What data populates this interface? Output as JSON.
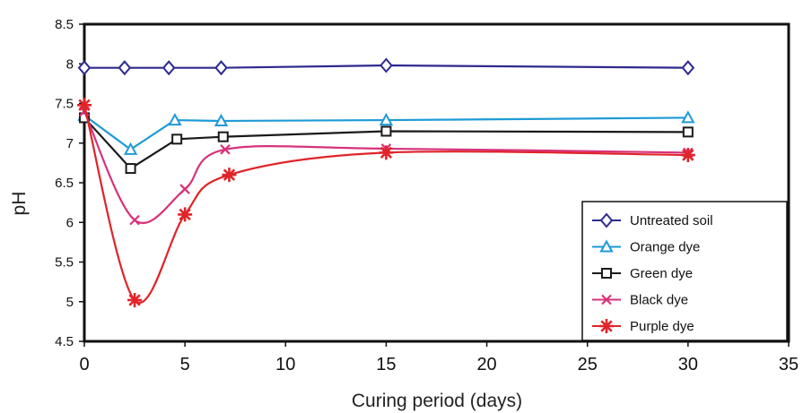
{
  "chart_data": {
    "type": "line",
    "xlabel": "Curing period (days)",
    "ylabel": "pH",
    "xlim": [
      0,
      35
    ],
    "ylim": [
      4.5,
      8.5
    ],
    "xticks": [
      "0",
      "5",
      "10",
      "15",
      "20",
      "25",
      "30",
      "35"
    ],
    "yticks": [
      "4.5",
      "5",
      "5.5",
      "6",
      "6.5",
      "7",
      "7.5",
      "8",
      "8.5"
    ],
    "grid": false,
    "legend_position": "bottom-right",
    "series": [
      {
        "name": "Untreated soil",
        "color": "#2e2a8f",
        "marker": "diamond",
        "smooth": false,
        "x": [
          0,
          2,
          4.2,
          6.8,
          15,
          30
        ],
        "y": [
          7.95,
          7.95,
          7.95,
          7.95,
          7.98,
          7.95
        ]
      },
      {
        "name": "Orange dye",
        "color": "#1e9ad6",
        "marker": "triangle",
        "smooth": false,
        "x": [
          0,
          2.3,
          4.5,
          6.8,
          15,
          30
        ],
        "y": [
          7.35,
          6.92,
          7.29,
          7.28,
          7.29,
          7.32
        ]
      },
      {
        "name": "Green dye",
        "color": "#1a1a1a",
        "marker": "square",
        "smooth": false,
        "x": [
          0,
          2.3,
          4.6,
          6.9,
          15,
          30
        ],
        "y": [
          7.32,
          6.68,
          7.05,
          7.08,
          7.15,
          7.14
        ]
      },
      {
        "name": "Black dye",
        "color": "#d6337a",
        "marker": "x",
        "smooth": true,
        "x": [
          0,
          2.5,
          5,
          7,
          15,
          30
        ],
        "y": [
          7.4,
          6.03,
          6.42,
          6.92,
          6.93,
          6.88
        ]
      },
      {
        "name": "Purple dye",
        "color": "#e0242a",
        "marker": "star",
        "smooth": true,
        "x": [
          0,
          2.5,
          5,
          7.2,
          15,
          30
        ],
        "y": [
          7.48,
          5.02,
          6.1,
          6.6,
          6.88,
          6.85
        ]
      }
    ]
  }
}
